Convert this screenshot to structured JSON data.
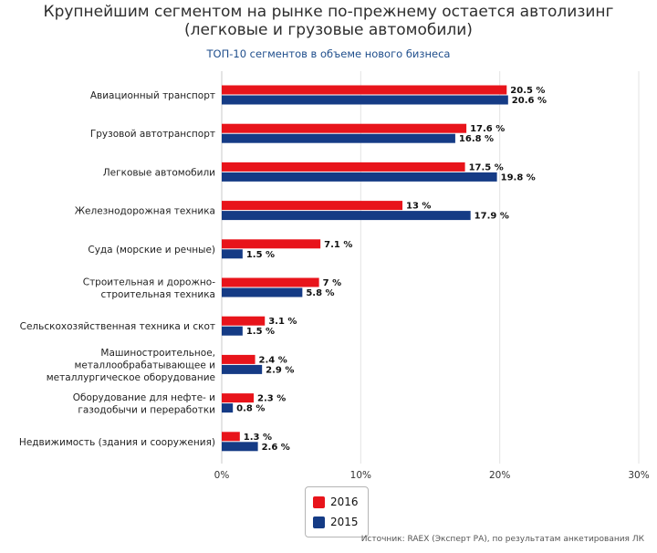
{
  "chart_data": {
    "type": "bar",
    "orientation": "horizontal",
    "title_line1": "Крупнейшим сегментом на рынке по-прежнему остается автолизинг",
    "title_line2": "(легковые и грузовые автомобили)",
    "subtitle": "ТОП-10 сегментов в объеме нового бизнеса",
    "categories": [
      [
        "Авиационный транспорт"
      ],
      [
        "Грузовой автотранспорт"
      ],
      [
        "Легковые автомобили"
      ],
      [
        "Железнодорожная техника"
      ],
      [
        "Суда (морские и речные)"
      ],
      [
        "Строительная и дорожно-",
        "строительная техника"
      ],
      [
        "Сельскохозяйственная техника и скот"
      ],
      [
        "Машиностроительное,",
        "металлообрабатывающее и",
        "металлургическое оборудование"
      ],
      [
        "Оборудование для нефте- и",
        "газодобычи и переработки"
      ],
      [
        "Недвижимость (здания и сооружения)"
      ]
    ],
    "series": [
      {
        "name": "2016",
        "color": "#e8141b",
        "values": [
          20.5,
          17.6,
          17.5,
          13,
          7.1,
          7,
          3.1,
          2.4,
          2.3,
          1.3
        ],
        "labels": [
          "20.5 %",
          "17.6 %",
          "17.5 %",
          "13 %",
          "7.1 %",
          "7 %",
          "3.1 %",
          "2.4 %",
          "2.3 %",
          "1.3 %"
        ]
      },
      {
        "name": "2015",
        "color": "#153b85",
        "values": [
          20.6,
          16.8,
          19.8,
          17.9,
          1.5,
          5.8,
          1.5,
          2.9,
          0.8,
          2.6
        ],
        "labels": [
          "20.6 %",
          "16.8 %",
          "19.8 %",
          "17.9 %",
          "1.5 %",
          "5.8 %",
          "1.5 %",
          "2.9 %",
          "0.8 %",
          "2.6 %"
        ]
      }
    ],
    "xlim": [
      0,
      30
    ],
    "ticks": [
      0,
      10,
      20,
      30
    ],
    "tick_labels": [
      "0%",
      "10%",
      "20%",
      "30%"
    ],
    "grid": true,
    "legend": [
      "2016",
      "2015"
    ],
    "legend_position": "bottom-center"
  },
  "source": "Источник: RAEX (Эксперт РА), по результатам анкетирования ЛК"
}
